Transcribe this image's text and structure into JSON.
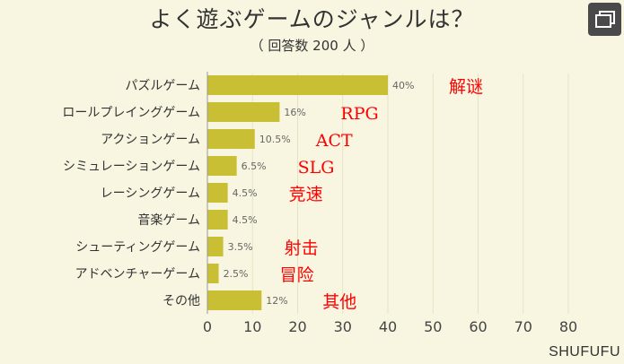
{
  "header": {
    "title": "よく遊ぶゲームのジャンルは？",
    "subtitle": "（ 回答数 200 人 ）"
  },
  "watermark": "SHUFUFU",
  "chart_data": {
    "type": "bar",
    "orientation": "horizontal",
    "categories": [
      "パズルゲーム",
      "ロールプレイングゲーム",
      "アクションゲーム",
      "シミュレーションゲーム",
      "レーシングゲーム",
      "音楽ゲーム",
      "シューティングゲーム",
      "アドベンチャーゲーム",
      "その他"
    ],
    "values": [
      40,
      16,
      10.5,
      6.5,
      4.5,
      4.5,
      3.5,
      2.5,
      12
    ],
    "value_labels": [
      "40%",
      "16%",
      "10.5%",
      "6.5%",
      "4.5%",
      "4.5%",
      "3.5%",
      "2.5%",
      "12%"
    ],
    "annotations": [
      "解谜",
      "RPG",
      "ACT",
      "SLG",
      "竞速",
      "",
      "射击",
      "冒险",
      "其他"
    ],
    "xticks": [
      0,
      10,
      20,
      30,
      40,
      50,
      60,
      70,
      80
    ],
    "xlim": [
      0,
      80
    ],
    "bar_color": "#c8bf35",
    "annotation_color": "#ff0000"
  }
}
